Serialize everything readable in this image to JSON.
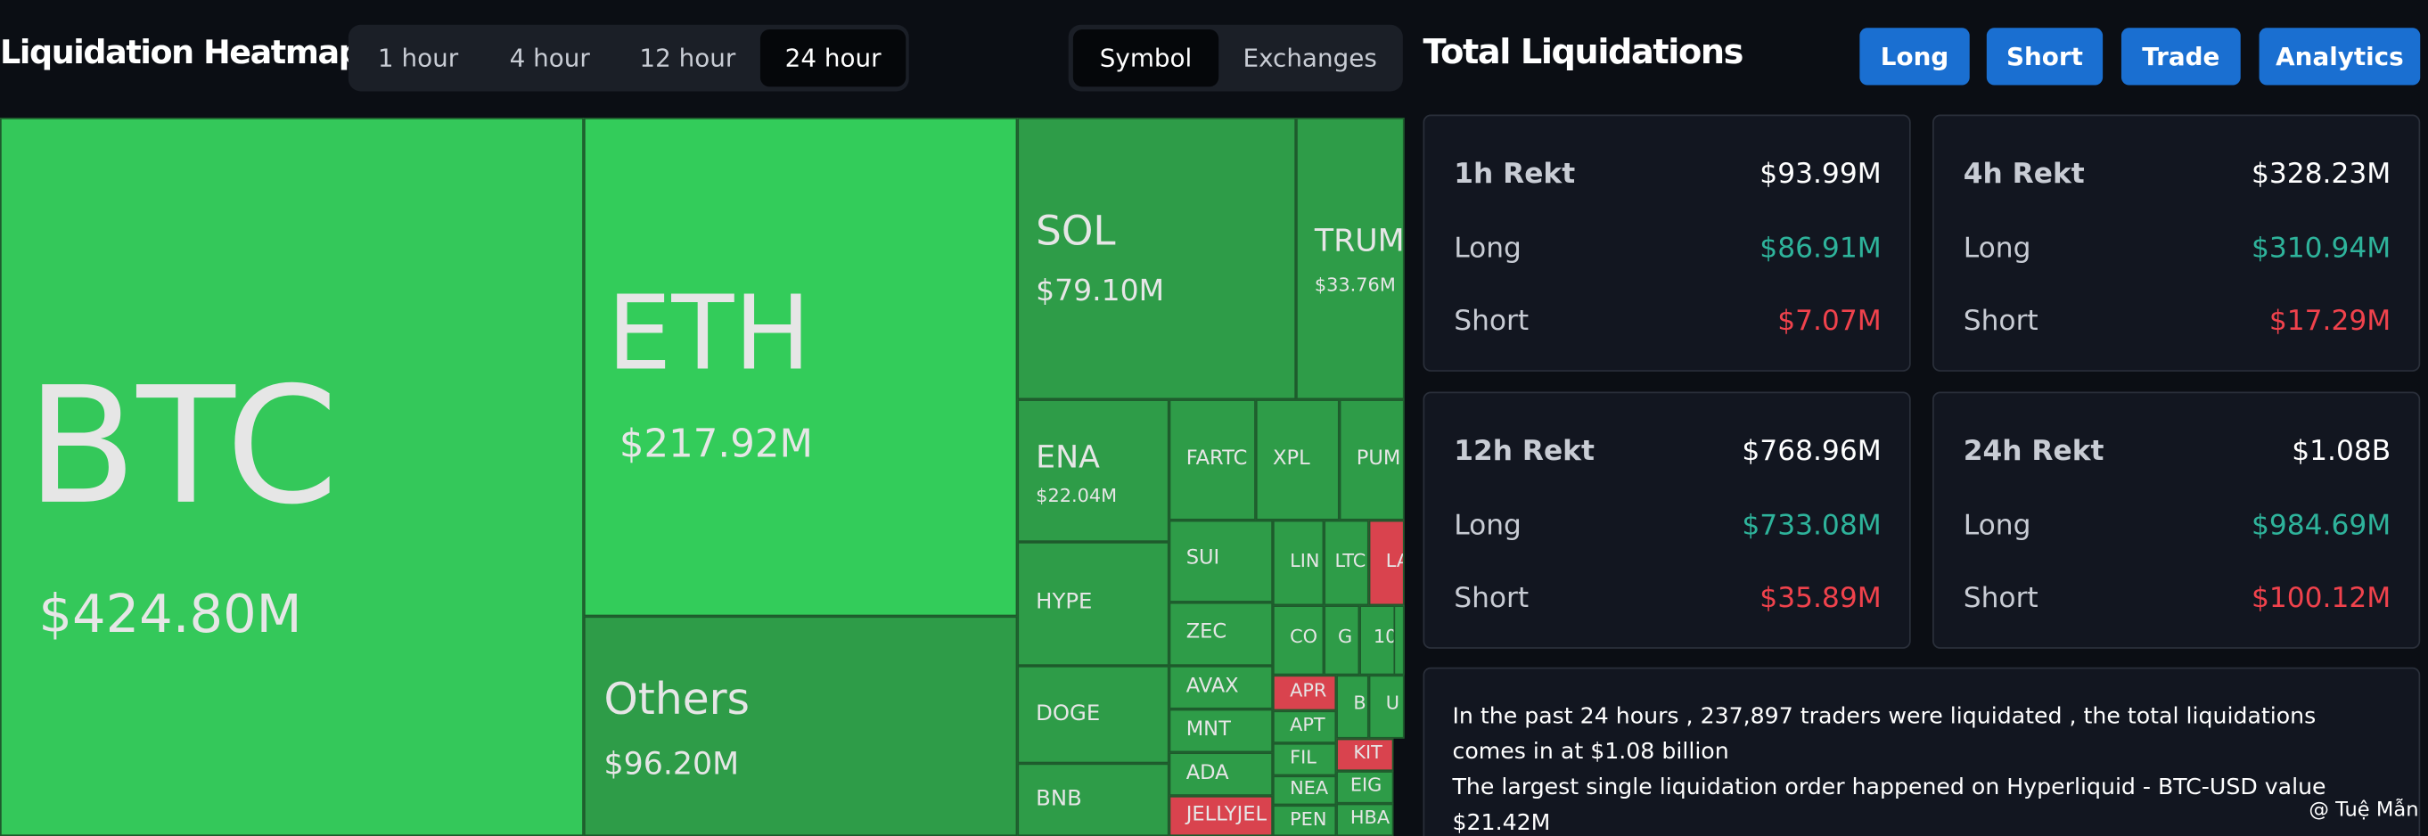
{
  "header": {
    "title": "Liquidation Heatmap",
    "tabs": [
      "1 hour",
      "4 hour",
      "12 hour",
      "24 hour"
    ],
    "views": [
      "Symbol",
      "Exchanges"
    ]
  },
  "treemap": {
    "tiles": [
      {
        "label": "BTC",
        "value": "$424.80M"
      },
      {
        "label": "ETH",
        "value": "$217.92M"
      },
      {
        "label": "Others",
        "value": "$96.20M"
      },
      {
        "label": "SOL",
        "value": "$79.10M"
      },
      {
        "label": "TRUM",
        "value": "$33.76M"
      },
      {
        "label": "ENA",
        "value": "$22.04M"
      },
      {
        "label": "FARTC"
      },
      {
        "label": "XPL"
      },
      {
        "label": "PUM"
      },
      {
        "label": "HYPE"
      },
      {
        "label": "DOGE"
      },
      {
        "label": "BNB"
      },
      {
        "label": "SUI"
      },
      {
        "label": "ZEC"
      },
      {
        "label": "AVAX"
      },
      {
        "label": "MNT"
      },
      {
        "label": "ADA"
      },
      {
        "label": "JELLYJEL"
      },
      {
        "label": "LIN"
      },
      {
        "label": "LTC"
      },
      {
        "label": "LA"
      },
      {
        "label": "CO"
      },
      {
        "label": "G"
      },
      {
        "label": "10"
      },
      {
        "label": "APR"
      },
      {
        "label": "APT"
      },
      {
        "label": "FIL"
      },
      {
        "label": "NEA"
      },
      {
        "label": "PEN"
      },
      {
        "label": "B"
      },
      {
        "label": "U"
      },
      {
        "label": "KIT"
      },
      {
        "label": "EIG"
      },
      {
        "label": "HBA"
      }
    ]
  },
  "panel": {
    "title": "Total Liquidations",
    "buttons": [
      "Long",
      "Short",
      "Trade",
      "Analytics"
    ],
    "cards": [
      {
        "title": "1h Rekt",
        "total": "$93.99M",
        "rows": [
          {
            "label": "Long",
            "value": "$86.91M"
          },
          {
            "label": "Short",
            "value": "$7.07M"
          }
        ]
      },
      {
        "title": "4h Rekt",
        "total": "$328.23M",
        "rows": [
          {
            "label": "Long",
            "value": "$310.94M"
          },
          {
            "label": "Short",
            "value": "$17.29M"
          }
        ]
      },
      {
        "title": "12h Rekt",
        "total": "$768.96M",
        "rows": [
          {
            "label": "Long",
            "value": "$733.08M"
          },
          {
            "label": "Short",
            "value": "$35.89M"
          }
        ]
      },
      {
        "title": "24h Rekt",
        "total": "$1.08B",
        "rows": [
          {
            "label": "Long",
            "value": "$984.69M"
          },
          {
            "label": "Short",
            "value": "$100.12M"
          }
        ]
      }
    ]
  },
  "summary": {
    "lines": [
      "In the past 24 hours , 237,897 traders were liquidated , the total liquidations comes in at $1.08 billion",
      "The largest single liquidation order happened on Hyperliquid - BTC-USD value $21.42M"
    ]
  },
  "watermark": "@ Tuệ Mẫn"
}
